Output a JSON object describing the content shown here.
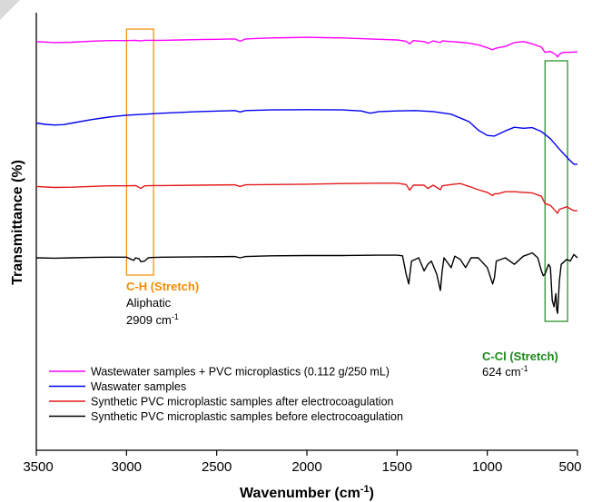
{
  "chart_data": {
    "type": "line",
    "xlabel": "Wavenumber (cm",
    "xlabel_sup": "-1",
    "xlabel_tail": ")",
    "ylabel": "Transmittance (%)",
    "xlim": [
      3500,
      500
    ],
    "x_reversed": true,
    "xticks": [
      3500,
      3000,
      2500,
      2000,
      1500,
      1000,
      500
    ],
    "legend_position": "lower-left",
    "series": [
      {
        "name": "Wastewater samples + PVC microplastics (0.112 g/250 mL)",
        "color": "#ff00ff",
        "offset": 3.0,
        "x": [
          3500,
          3400,
          3300,
          3200,
          3100,
          3000,
          2950,
          2920,
          2900,
          2850,
          2800,
          2700,
          2600,
          2500,
          2400,
          2370,
          2340,
          2300,
          2200,
          2100,
          2000,
          1900,
          1800,
          1700,
          1600,
          1500,
          1450,
          1430,
          1410,
          1350,
          1330,
          1300,
          1260,
          1250,
          1200,
          1150,
          1100,
          1050,
          1000,
          970,
          960,
          940,
          900,
          850,
          800,
          750,
          700,
          680,
          650,
          620,
          610,
          600,
          580,
          550,
          520,
          500
        ],
        "y": [
          0.95,
          0.92,
          0.93,
          0.96,
          0.98,
          0.98,
          0.99,
          0.97,
          0.99,
          0.99,
          0.99,
          1.0,
          1.01,
          1.02,
          1.03,
          0.96,
          1.03,
          1.04,
          1.06,
          1.07,
          1.08,
          1.07,
          1.06,
          1.04,
          1.02,
          1.0,
          0.96,
          0.88,
          0.98,
          0.95,
          0.9,
          0.97,
          0.92,
          0.97,
          0.95,
          0.93,
          0.9,
          0.85,
          0.76,
          0.7,
          0.73,
          0.76,
          0.8,
          0.92,
          0.95,
          0.88,
          0.78,
          0.62,
          0.65,
          0.55,
          0.48,
          0.56,
          0.62,
          0.62,
          0.63,
          0.63
        ]
      },
      {
        "name": "Waswater samples",
        "color": "#0000ee",
        "offset": 2.0,
        "x": [
          3500,
          3450,
          3400,
          3350,
          3300,
          3200,
          3100,
          3000,
          2900,
          2800,
          2600,
          2400,
          2370,
          2340,
          2200,
          2000,
          1800,
          1700,
          1650,
          1600,
          1500,
          1400,
          1300,
          1200,
          1100,
          1050,
          1000,
          960,
          900,
          850,
          800,
          750,
          700,
          650,
          600,
          550,
          520,
          500
        ],
        "y": [
          0.68,
          0.64,
          0.62,
          0.63,
          0.68,
          0.78,
          0.86,
          0.92,
          0.95,
          0.98,
          1.03,
          1.06,
          1.02,
          1.06,
          1.08,
          1.09,
          1.08,
          1.05,
          0.98,
          1.03,
          1.05,
          1.06,
          1.03,
          0.95,
          0.72,
          0.46,
          0.3,
          0.28,
          0.44,
          0.55,
          0.52,
          0.54,
          0.42,
          0.2,
          -0.12,
          -0.42,
          -0.58,
          -0.58
        ]
      },
      {
        "name": "Synthetic PVC microplastic samples after electrocoagulation",
        "color": "#e31a1c",
        "offset": 1.0,
        "x": [
          3500,
          3400,
          3300,
          3200,
          3100,
          3000,
          2950,
          2920,
          2900,
          2850,
          2800,
          2600,
          2400,
          2370,
          2340,
          2200,
          2000,
          1800,
          1600,
          1500,
          1450,
          1430,
          1410,
          1350,
          1330,
          1300,
          1260,
          1250,
          1200,
          1150,
          1100,
          1050,
          1000,
          970,
          960,
          940,
          900,
          850,
          800,
          750,
          700,
          680,
          650,
          620,
          610,
          600,
          560,
          520,
          500
        ],
        "y": [
          0.96,
          0.93,
          0.94,
          0.96,
          0.98,
          0.98,
          0.99,
          0.9,
          0.98,
          0.99,
          0.99,
          1.0,
          1.01,
          0.96,
          1.01,
          1.02,
          1.03,
          1.05,
          1.06,
          1.06,
          1.02,
          0.85,
          1.0,
          1.0,
          0.9,
          1.0,
          0.86,
          0.98,
          1.02,
          1.05,
          0.96,
          0.86,
          0.78,
          0.68,
          0.74,
          0.74,
          0.8,
          0.8,
          0.78,
          0.76,
          0.66,
          0.44,
          0.38,
          0.2,
          0.14,
          0.26,
          0.34,
          0.22,
          0.22
        ]
      },
      {
        "name": "Synthetic PVC microplastic samples before electrocoagulation",
        "color": "#000000",
        "offset": 0.0,
        "x": [
          3500,
          3400,
          3300,
          3200,
          3100,
          3000,
          2960,
          2950,
          2930,
          2920,
          2900,
          2880,
          2850,
          2800,
          2600,
          2400,
          2370,
          2340,
          2200,
          2000,
          1800,
          1600,
          1500,
          1470,
          1450,
          1435,
          1420,
          1380,
          1350,
          1330,
          1310,
          1280,
          1260,
          1250,
          1240,
          1200,
          1180,
          1150,
          1120,
          1100,
          1090,
          1050,
          1000,
          970,
          960,
          950,
          900,
          850,
          800,
          750,
          720,
          700,
          690,
          680,
          660,
          650,
          640,
          630,
          620,
          615,
          610,
          600,
          590,
          560,
          540,
          520,
          500
        ],
        "y": [
          1.0,
          0.99,
          1.0,
          1.01,
          1.02,
          1.02,
          0.92,
          1.0,
          0.97,
          0.88,
          0.9,
          1.0,
          1.01,
          1.02,
          1.03,
          1.04,
          1.0,
          1.04,
          1.06,
          1.07,
          1.07,
          1.08,
          1.08,
          1.06,
          0.5,
          0.2,
          0.9,
          1.0,
          0.6,
          0.8,
          0.9,
          0.5,
          0.0,
          0.6,
          1.0,
          0.7,
          1.05,
          0.95,
          0.7,
          0.9,
          1.0,
          1.0,
          0.7,
          0.2,
          0.4,
          0.9,
          1.0,
          0.8,
          1.05,
          1.15,
          1.0,
          0.6,
          0.45,
          0.5,
          0.8,
          0.7,
          -0.3,
          -0.5,
          -0.1,
          -0.6,
          -0.7,
          0.3,
          0.8,
          0.95,
          0.9,
          1.1,
          1.0
        ]
      }
    ],
    "annotations": [
      {
        "id": "ch",
        "title": "C-H (Stretch)",
        "line2": "Aliphatic",
        "line3": "2909 cm",
        "sup": "-1",
        "color": "#f28c00",
        "range": [
          3000,
          2850
        ]
      },
      {
        "id": "ccl",
        "title": "C-Cl (Stretch)",
        "line2": "624 cm",
        "sup": "-1",
        "color": "#1b8a1b",
        "range": [
          680,
          555
        ]
      }
    ]
  }
}
